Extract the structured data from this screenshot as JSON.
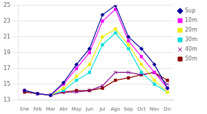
{
  "chart_data": {
    "type": "line",
    "categories": [
      "Ene",
      "Feb",
      "Mar",
      "Abr",
      "May",
      "Jun",
      "Jul",
      "Ago",
      "Sep",
      "Oct",
      "Nov",
      "Dic"
    ],
    "series": [
      {
        "name": "Sup",
        "color": "#000099",
        "marker": "diamond",
        "values": [
          14.2,
          13.8,
          13.6,
          15.2,
          17.5,
          19.5,
          23.8,
          25.0,
          21.0,
          19.5,
          17.5,
          14.5
        ]
      },
      {
        "name": "10m",
        "color": "#FF00FF",
        "marker": "square",
        "values": [
          14.2,
          13.8,
          13.6,
          15.0,
          17.0,
          19.0,
          23.0,
          24.5,
          20.5,
          18.5,
          16.5,
          14.5
        ]
      },
      {
        "name": "20m",
        "color": "#EEEE00",
        "marker": "square",
        "values": [
          14.2,
          13.8,
          13.6,
          14.5,
          16.0,
          17.5,
          21.0,
          22.0,
          20.0,
          17.5,
          15.5,
          14.0
        ]
      },
      {
        "name": "30m",
        "color": "#00DDDD",
        "marker": "square",
        "values": [
          14.2,
          13.8,
          13.6,
          14.2,
          15.5,
          16.5,
          20.0,
          21.5,
          19.5,
          16.5,
          15.0,
          14.0
        ]
      },
      {
        "name": "40m",
        "color": "#880088",
        "marker": "x",
        "values": [
          14.2,
          13.8,
          13.6,
          14.0,
          14.0,
          14.2,
          14.8,
          16.5,
          16.5,
          16.2,
          16.5,
          15.0
        ]
      },
      {
        "name": "50m",
        "color": "#8B0000",
        "marker": "square",
        "values": [
          14.0,
          13.8,
          13.6,
          14.0,
          14.2,
          14.2,
          14.5,
          15.5,
          15.8,
          16.2,
          16.5,
          15.5
        ]
      }
    ],
    "ylim": [
      13,
      25
    ],
    "yticks": [
      13,
      15,
      17,
      19,
      21,
      23,
      25
    ],
    "grid": "y",
    "legend": "right"
  }
}
